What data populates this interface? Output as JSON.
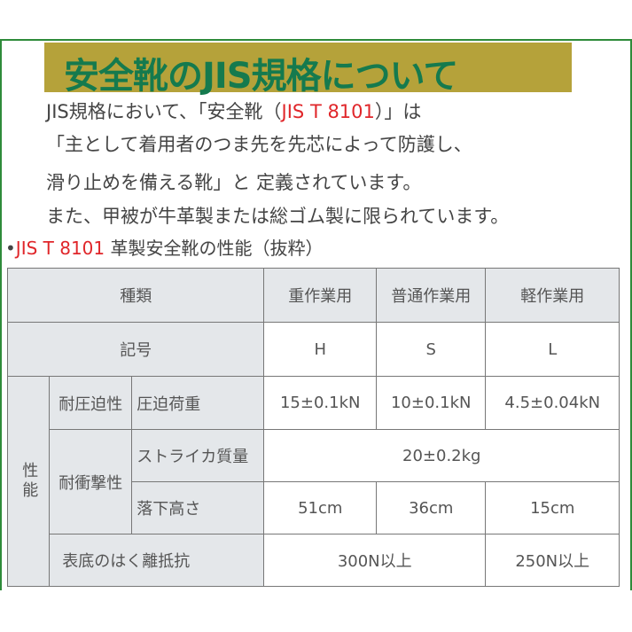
{
  "title": "安全靴のJIS規格について",
  "intro": {
    "line1_a": "JIS規格において、「安全靴（",
    "line1_red": "JIS T 8101",
    "line1_b": "）」は",
    "line2": "「主として着用者のつま先を先芯によって防護し、",
    "line3": "滑り止めを備える靴」と 定義されています。",
    "line4": "また、甲被が牛革製または総ゴム製に限られています。"
  },
  "section": {
    "bullet": "•",
    "code": "JIS T 8101",
    "heading": " 革製安全靴の性能（抜粋）"
  },
  "table": {
    "type_label": "種類",
    "columns": [
      "重作業用",
      "普通作業用",
      "軽作業用"
    ],
    "symbol_label": "記号",
    "symbols": [
      "H",
      "S",
      "L"
    ],
    "performance_label": "性能",
    "compression_label": "耐圧迫性",
    "compression_load_label": "圧迫荷重",
    "compression_values": [
      "15±0.1kN",
      "10±0.1kN",
      "4.5±0.04kN"
    ],
    "impact_label": "耐衝撃性",
    "striker_mass_label": "ストライカ質量",
    "striker_mass_value": "20±0.2kg",
    "drop_height_label": "落下高さ",
    "drop_height_values": [
      "51cm",
      "36cm",
      "15cm"
    ],
    "peel_label": "表底のはく離抵抗",
    "peel_values": [
      "300N以上",
      "250N以上"
    ]
  },
  "colors": {
    "frame": "#2e8b3a",
    "title_band": "#b5a23a",
    "title_text": "#157a4e",
    "accent_red": "#e0262a",
    "header_bg": "#e4e7ea"
  }
}
